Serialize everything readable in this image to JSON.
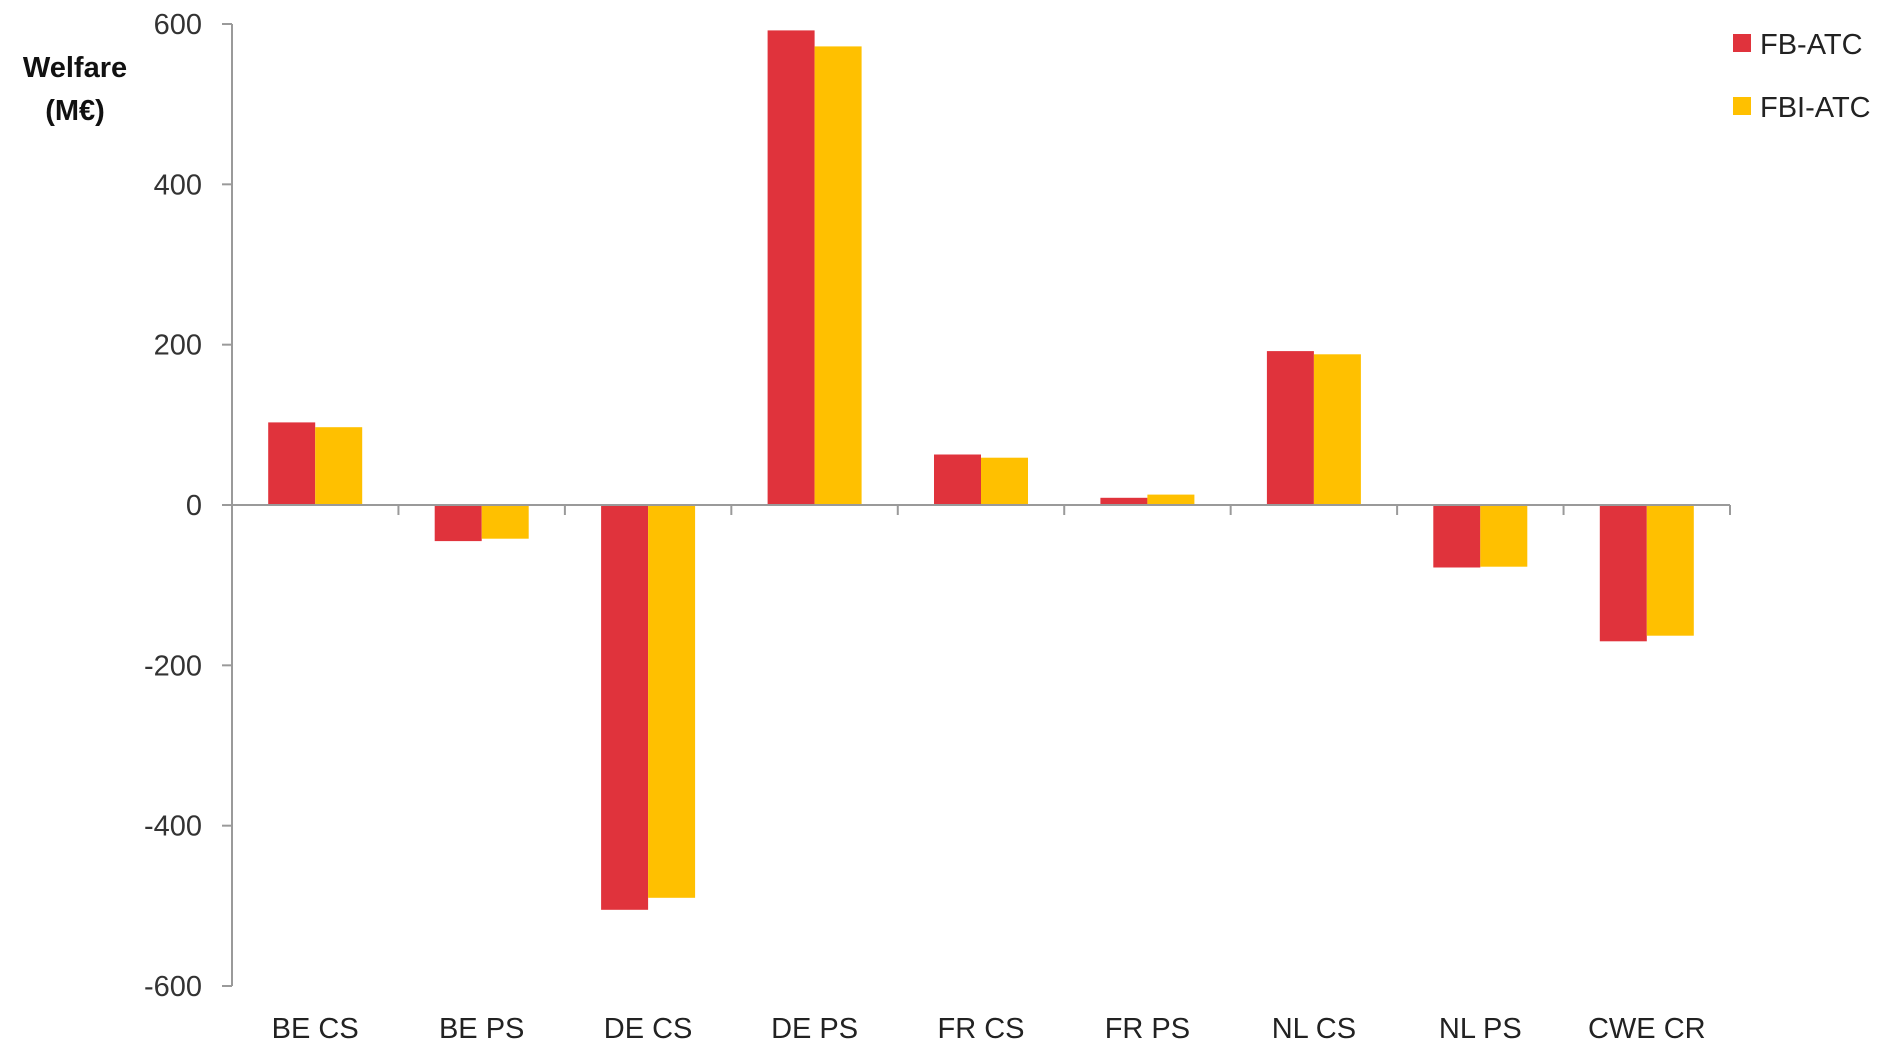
{
  "chart_data": {
    "type": "bar",
    "ylabel_line1": "Welfare",
    "ylabel_line2": "(M€)",
    "categories": [
      "BE CS",
      "BE PS",
      "DE CS",
      "DE PS",
      "FR CS",
      "FR PS",
      "NL CS",
      "NL PS",
      "CWE CR"
    ],
    "series": [
      {
        "name": "FB-ATC",
        "color": "#e0333c",
        "values": [
          103,
          -45,
          -505,
          592,
          63,
          9,
          192,
          -78,
          -170
        ]
      },
      {
        "name": "FBI-ATC",
        "color": "#ffc000",
        "values": [
          97,
          -42,
          -490,
          572,
          59,
          13,
          188,
          -77,
          -163
        ]
      }
    ],
    "ylim": [
      -600,
      600
    ],
    "yticks": [
      600,
      400,
      200,
      0,
      -200,
      -400,
      -600
    ],
    "ytick_labels": [
      "600",
      "400",
      "200",
      "0",
      "-200",
      "-400",
      "-600"
    ],
    "grid": false,
    "legend_position": "top-right"
  }
}
